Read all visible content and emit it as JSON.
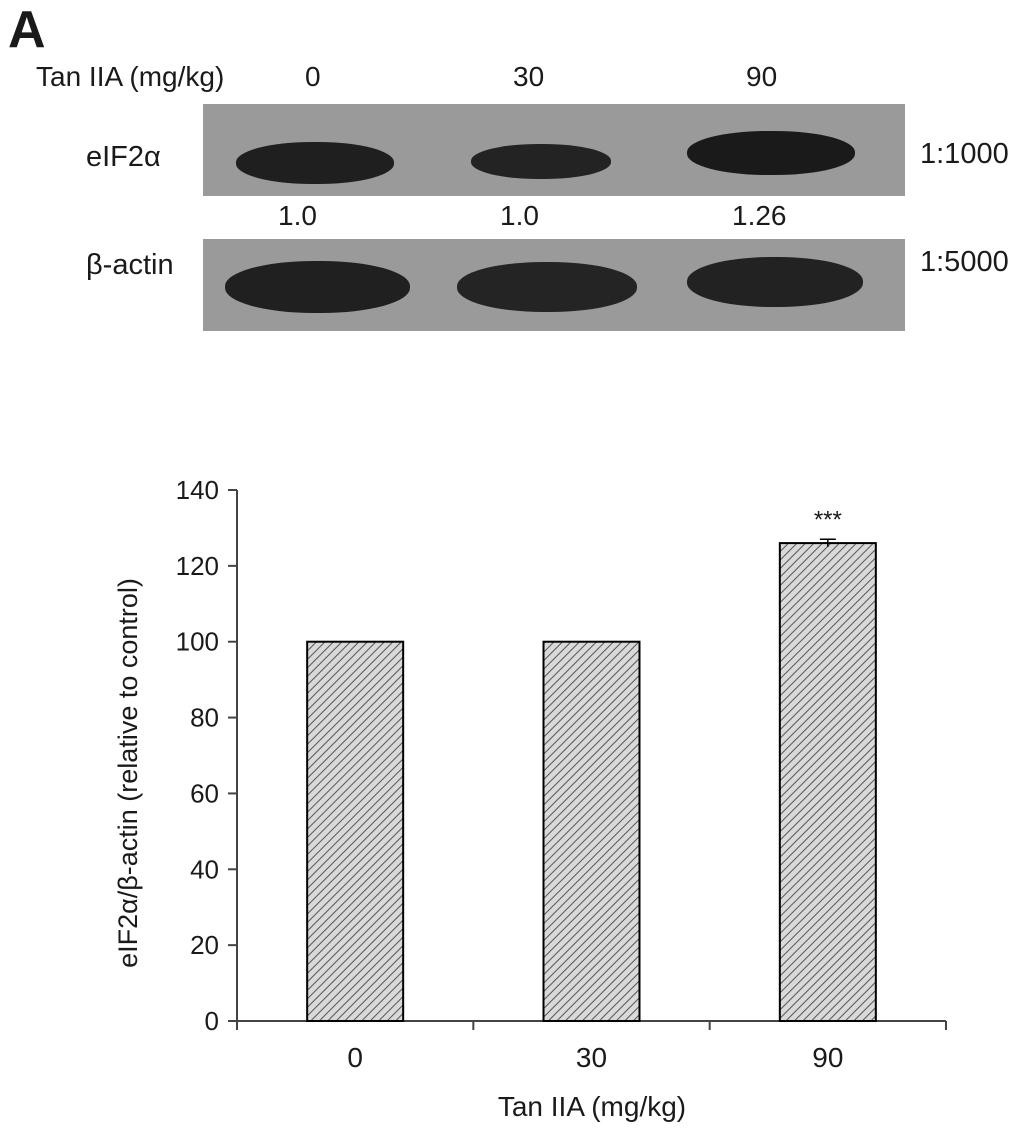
{
  "panel_label": "A",
  "blot": {
    "treatment_label": "Tan IIA (mg/kg)",
    "lanes": [
      "0",
      "30",
      "90"
    ],
    "rows": [
      {
        "name": "eIF2α",
        "dilution": "1:1000"
      },
      {
        "name": "β-actin",
        "dilution": "1:5000"
      }
    ],
    "band_ratios": [
      "1.0",
      "1.0",
      "1.26"
    ]
  },
  "chart_data": {
    "type": "bar",
    "categories": [
      "0",
      "30",
      "90"
    ],
    "values": [
      100,
      100,
      126
    ],
    "errors": [
      0,
      0,
      1
    ],
    "annotations": [
      "",
      "",
      "***"
    ],
    "xlabel": "Tan IIA (mg/kg)",
    "ylabel": "eIF2α/β-actin (relative to control)",
    "ylim": [
      0,
      140
    ],
    "yticks": [
      "0",
      "20",
      "40",
      "60",
      "80",
      "100",
      "120",
      "140"
    ],
    "grid": false,
    "bar_fill": "hatched grey",
    "colors": {
      "bar_fill": "#d9d9d9",
      "hatch": "#555555",
      "outline": "#000000"
    }
  }
}
